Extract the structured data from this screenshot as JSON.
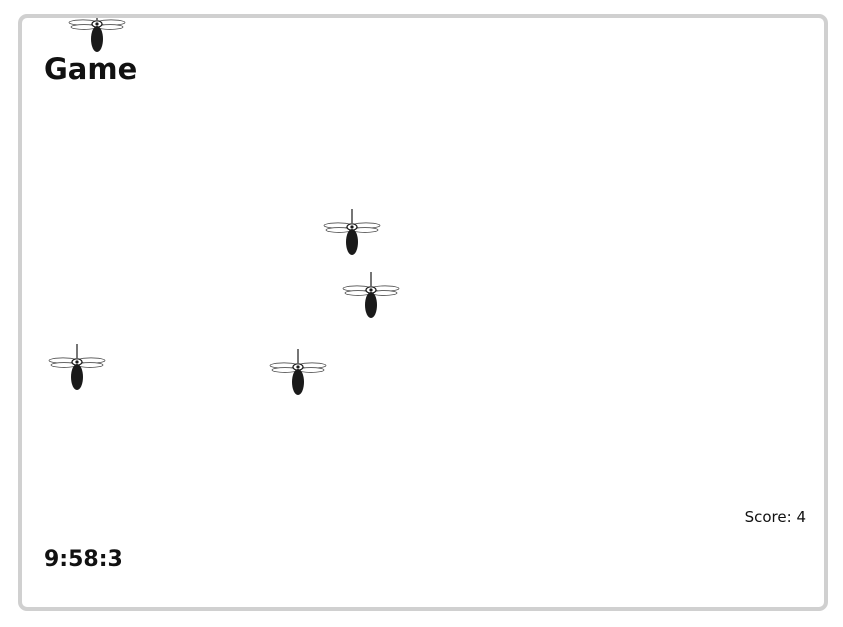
{
  "game": {
    "title": "Game",
    "score_label": "Score: 4",
    "timer": "9:58:3"
  },
  "colors": {
    "border": "#d0d0d0",
    "mosquito_body": "#1a1a1a",
    "text": "#111111"
  },
  "sprites": [
    {
      "name": "mosquito-icon"
    },
    {
      "name": "mosquito-icon"
    },
    {
      "name": "mosquito-icon"
    },
    {
      "name": "mosquito-icon"
    },
    {
      "name": "mosquito-icon"
    }
  ]
}
